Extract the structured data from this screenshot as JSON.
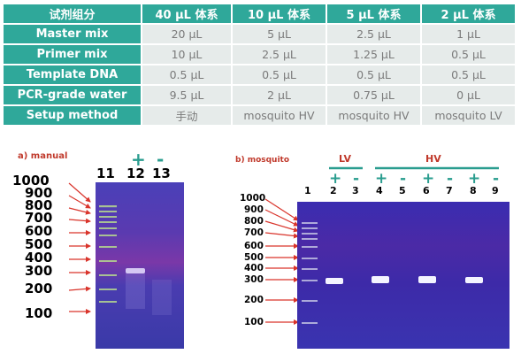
{
  "table": {
    "header": [
      "试剂组分",
      "40 μL 体系",
      "10 μL 体系",
      "5 μL 体系",
      "2 μL 体系"
    ],
    "rows": [
      {
        "label": "Master mix",
        "cells": [
          "20 μL",
          "5 μL",
          "2.5 μL",
          "1 μL"
        ]
      },
      {
        "label": "Primer mix",
        "cells": [
          "10 μL",
          "2.5 μL",
          "1.25 μL",
          "0.5 μL"
        ]
      },
      {
        "label": "Template DNA",
        "cells": [
          "0.5 μL",
          "0.5 μL",
          "0.5 μL",
          "0.5 μL"
        ]
      },
      {
        "label": "PCR-grade water",
        "cells": [
          "9.5 μL",
          "2 μL",
          "0.75 μL",
          "0 μL"
        ]
      },
      {
        "label": "Setup method",
        "cells": [
          "手动",
          "mosquito HV",
          "mosquito HV",
          "mosquito LV"
        ]
      }
    ]
  },
  "panel_a": {
    "title": "a) manual",
    "markers": [
      "1000",
      "900",
      "800",
      "700",
      "600",
      "500",
      "400",
      "300",
      "200",
      "100"
    ],
    "lanes": [
      "11",
      "12",
      "13"
    ],
    "signs": [
      "+",
      "-"
    ]
  },
  "panel_b": {
    "title": "b) mosquito",
    "groups": [
      "LV",
      "HV"
    ],
    "markers": [
      "1000",
      "900",
      "800",
      "700",
      "600",
      "500",
      "400",
      "300",
      "200",
      "100"
    ],
    "lanes": [
      "1",
      "2",
      "3",
      "4",
      "5",
      "6",
      "7",
      "8",
      "9"
    ],
    "signs": [
      "+",
      "-",
      "+",
      "-",
      "+",
      "-",
      "+",
      "-"
    ]
  },
  "colors": {
    "header_teal": "#2fa89a",
    "cell_bg": "#e6ebea",
    "arrow_red": "#d9342b",
    "gel_purple": "#3d2aa8",
    "sign_teal": "#2a9d8f"
  }
}
